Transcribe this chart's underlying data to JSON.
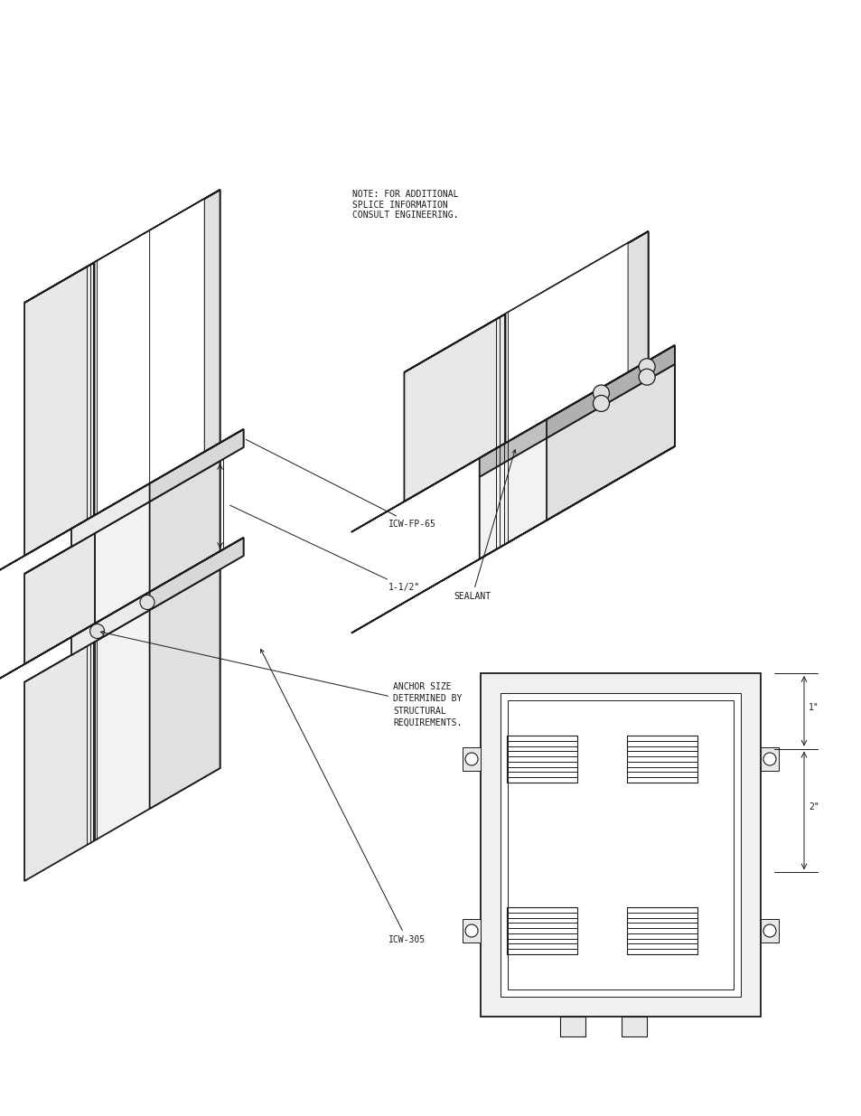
{
  "bg_color": "#ffffff",
  "lc": "#1a1a1a",
  "lw_main": 1.3,
  "lw_thin": 0.7,
  "lw_thick": 1.5,
  "note_text": "NOTE: FOR ADDITIONAL\nSPLICE INFORMATION\nCONSULT ENGINEERING.",
  "label_icw_fp65": "ICW-FP-65",
  "label_15": "1-1/2\"",
  "label_anchor": "ANCHOR SIZE\nDETERMINED BY\nSTRUCTURAL\nREQUIREMENTS.",
  "label_icw305": "ICW-305",
  "label_sealant": "SEALANT",
  "dim_1in": "1\"",
  "dim_2in": "2\"",
  "font_sz": 7.0
}
